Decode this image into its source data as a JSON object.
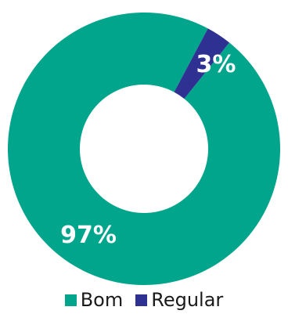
{
  "chart_data": {
    "type": "pie",
    "donut": true,
    "title": "",
    "categories": [
      "Bom",
      "Regular"
    ],
    "values": [
      97,
      3
    ],
    "labels": [
      "97%",
      "3%"
    ],
    "colors": [
      "#00a58c",
      "#2e3192"
    ],
    "legend_placement": "bottom"
  }
}
